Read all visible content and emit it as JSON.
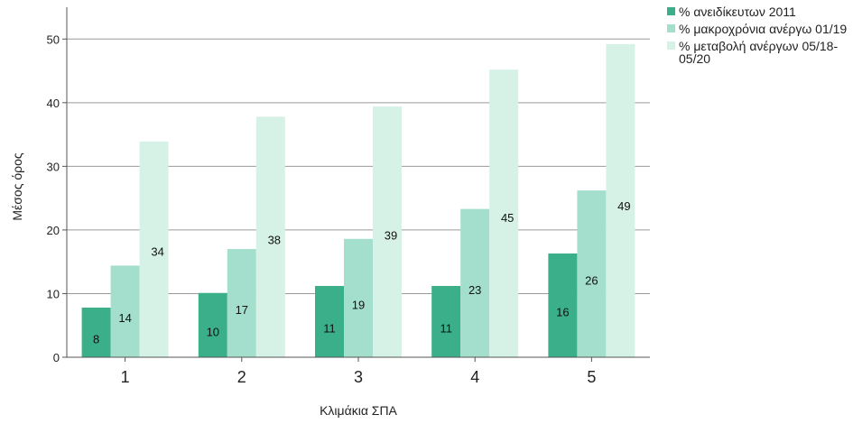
{
  "chart_data": {
    "type": "bar",
    "xlabel": "Κλιμάκια ΣΠΑ",
    "ylabel": "Μέσος όρος",
    "categories": [
      "1",
      "2",
      "3",
      "4",
      "5"
    ],
    "ylim": [
      0,
      55
    ],
    "yticks": [
      0,
      10,
      20,
      30,
      40,
      50
    ],
    "grid": true,
    "legend_position": "top-right",
    "series": [
      {
        "name": "% ανειδίκευτων 2011",
        "color": "#3aaf8a",
        "values": [
          7.8,
          10.1,
          11.2,
          11.2,
          16.3
        ],
        "labels": [
          "8",
          "10",
          "11",
          "11",
          "16"
        ]
      },
      {
        "name": "% μακροχρόνια ανέργω 01/19",
        "color": "#a3dfcc",
        "values": [
          14.4,
          17.0,
          18.6,
          23.3,
          26.2
        ],
        "labels": [
          "14",
          "17",
          "19",
          "23",
          "26"
        ]
      },
      {
        "name": "% μεταβολή ανέργων 05/18-05/20",
        "color": "#d6f2e6",
        "values": [
          33.9,
          37.8,
          39.4,
          45.2,
          49.2
        ],
        "labels": [
          "34",
          "38",
          "39",
          "45",
          "49"
        ]
      }
    ]
  }
}
